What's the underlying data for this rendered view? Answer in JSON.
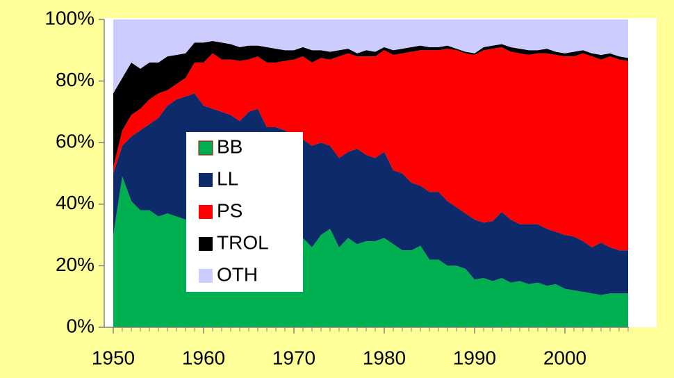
{
  "chart_data": {
    "type": "stacked-area",
    "x": [
      1950,
      1951,
      1952,
      1953,
      1954,
      1955,
      1956,
      1957,
      1958,
      1959,
      1960,
      1961,
      1962,
      1963,
      1964,
      1965,
      1966,
      1967,
      1968,
      1969,
      1970,
      1971,
      1972,
      1973,
      1974,
      1975,
      1976,
      1977,
      1978,
      1979,
      1980,
      1981,
      1982,
      1983,
      1984,
      1985,
      1986,
      1987,
      1988,
      1989,
      1990,
      1991,
      1992,
      1993,
      1994,
      1995,
      1996,
      1997,
      1998,
      1999,
      2000,
      2001,
      2002,
      2003,
      2004,
      2005,
      2006,
      2007
    ],
    "series": [
      {
        "name": "BB",
        "color": "#00b050",
        "values": [
          30,
          49,
          41,
          38,
          38,
          36,
          37,
          36,
          35,
          35,
          34,
          34,
          33,
          33,
          32,
          32,
          31,
          31,
          30,
          30,
          28,
          29,
          26,
          30,
          32,
          26,
          29,
          27,
          28,
          28,
          29,
          27,
          25,
          25,
          26.5,
          22,
          22,
          20,
          20,
          19,
          15.5,
          16,
          15,
          16,
          14.5,
          15,
          14,
          14.5,
          13.5,
          14,
          12.5,
          12,
          11.5,
          11,
          10.5,
          11,
          11,
          11
        ]
      },
      {
        "name": "LL",
        "color": "#0d2a6b",
        "values": [
          20,
          10,
          21,
          26,
          28,
          32,
          35,
          38,
          40,
          41,
          38,
          37,
          37,
          36,
          35,
          38,
          40,
          34,
          35,
          34,
          34,
          32,
          33,
          30,
          27,
          29,
          28,
          31,
          28,
          27,
          28,
          24,
          25,
          22,
          19.5,
          22,
          22,
          21,
          19,
          18,
          19.5,
          18,
          19.5,
          21.5,
          20.5,
          18.5,
          19.5,
          19,
          18.5,
          17,
          17.5,
          17.5,
          16.5,
          15,
          17,
          15,
          14,
          14
        ]
      },
      {
        "name": "PS",
        "color": "#ff0000",
        "values": [
          2,
          5,
          7,
          7,
          8,
          8,
          5,
          5,
          6,
          10,
          14,
          18,
          17,
          18,
          19.5,
          17,
          17,
          21,
          21,
          22.5,
          25,
          27,
          27,
          27.5,
          28,
          33,
          32,
          30,
          32,
          33,
          33,
          37.5,
          39,
          42.5,
          44,
          46,
          46,
          49.5,
          51,
          52,
          53.5,
          56,
          56,
          53.5,
          54.5,
          55.5,
          55,
          55.5,
          57,
          57.5,
          58,
          58.5,
          61,
          62,
          59.5,
          62,
          62,
          61.5
        ]
      },
      {
        "name": "TROL",
        "color": "#000000",
        "values": [
          24,
          17,
          17,
          13,
          12,
          10,
          11,
          9.5,
          8,
          6.5,
          6.5,
          4,
          5.5,
          5,
          4.5,
          4.5,
          3.5,
          5,
          4.5,
          3.5,
          3,
          3,
          4,
          2.5,
          2.5,
          2,
          1.5,
          1,
          2,
          1.5,
          1,
          1.5,
          1.5,
          1.5,
          1.5,
          1,
          1,
          1,
          0.5,
          0.5,
          0.5,
          1,
          1,
          1,
          1.5,
          1.5,
          1.5,
          1,
          1.5,
          1,
          1,
          1.5,
          1,
          1,
          1.5,
          1,
          1,
          1
        ]
      },
      {
        "name": "OTH",
        "color": "#ccccff",
        "values": [
          24,
          19,
          14,
          16,
          14,
          14,
          12,
          11.5,
          11,
          7.5,
          7.5,
          7,
          7.5,
          8,
          9,
          8.5,
          8.5,
          9,
          9.5,
          10,
          10,
          9,
          10,
          10,
          10.5,
          10,
          9.5,
          11,
          10,
          10.5,
          9,
          10,
          9.5,
          9,
          8.5,
          9,
          9,
          8.5,
          9.5,
          10.5,
          11,
          9,
          8.5,
          8,
          9,
          9.5,
          10,
          10,
          9.5,
          10.5,
          11,
          10.5,
          10,
          11,
          11.5,
          11,
          12,
          12.5
        ]
      }
    ],
    "xlim": [
      1949,
      2008
    ],
    "xticks": [
      1950,
      1960,
      1970,
      1980,
      1990,
      2000
    ],
    "ylim": [
      0,
      100
    ],
    "yticks": [
      {
        "value": 0,
        "label": "0%"
      },
      {
        "value": 20,
        "label": "20%"
      },
      {
        "value": 40,
        "label": "40%"
      },
      {
        "value": 60,
        "label": "60%"
      },
      {
        "value": 80,
        "label": "80%"
      },
      {
        "value": 100,
        "label": "100%"
      }
    ],
    "legend": "center-left"
  }
}
